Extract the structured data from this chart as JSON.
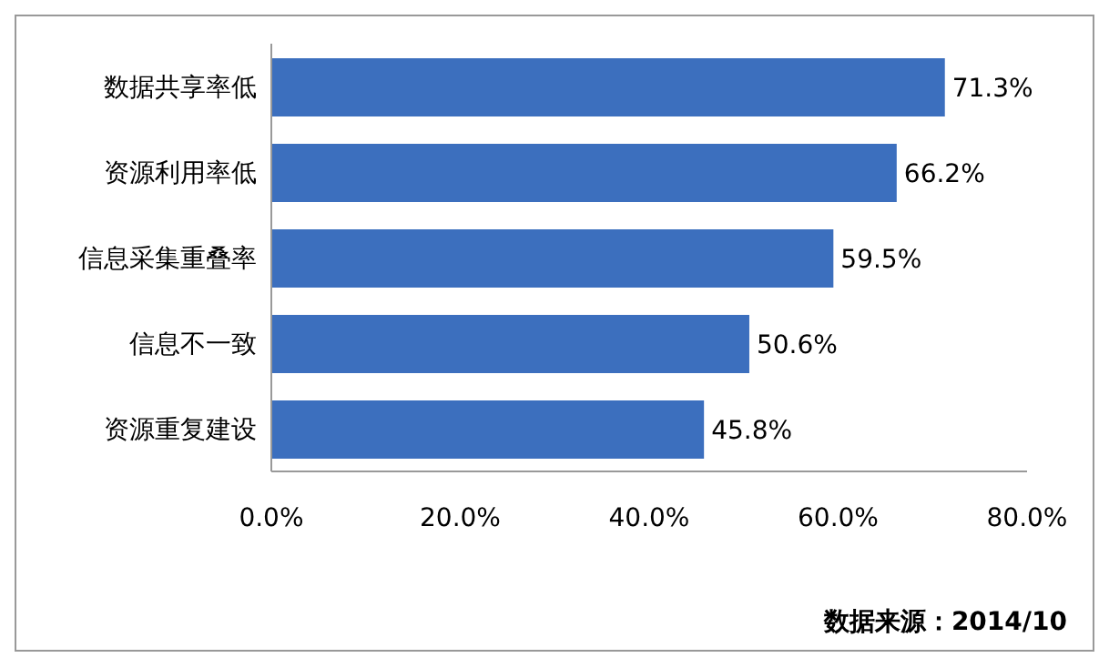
{
  "chart_data": {
    "type": "bar",
    "orientation": "horizontal",
    "categories": [
      "数据共享率低",
      "资源利用率低",
      "信息采集重叠率",
      "信息不一致",
      "资源重复建设"
    ],
    "values": [
      71.3,
      66.2,
      59.5,
      50.6,
      45.8
    ],
    "value_labels": [
      "71.3%",
      "66.2%",
      "59.5%",
      "50.6%",
      "45.8%"
    ],
    "color": "#3c6fbe",
    "xlim": [
      0,
      80
    ],
    "xticks": [
      {
        "value": 0,
        "label": "0.0%"
      },
      {
        "value": 20,
        "label": "20.0%"
      },
      {
        "value": 40,
        "label": "40.0%"
      },
      {
        "value": 60,
        "label": "60.0%"
      },
      {
        "value": 80,
        "label": "80.0%"
      }
    ],
    "grid": false,
    "legend": false,
    "annotations": [
      "数据来源：2014/10"
    ]
  }
}
